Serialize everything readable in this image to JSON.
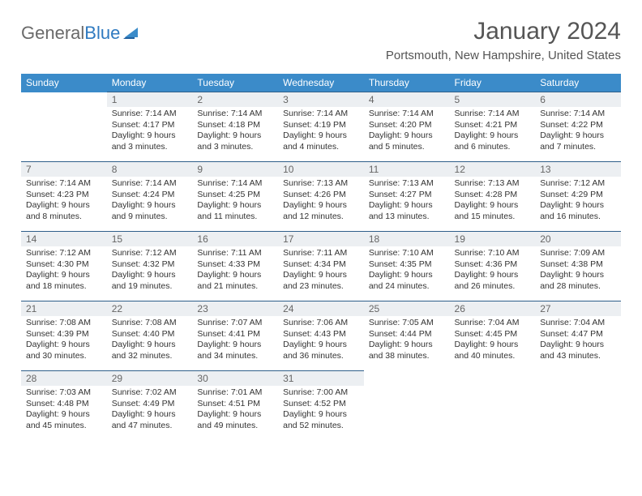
{
  "logo": {
    "text1": "General",
    "text2": "Blue"
  },
  "title": "January 2024",
  "location": "Portsmouth, New Hampshire, United States",
  "colors": {
    "header_bg": "#3b8bc9",
    "header_text": "#ffffff",
    "cell_border": "#2f5f8a",
    "daynum_bg": "#eceff2",
    "daynum_text": "#666666",
    "body_text": "#333333",
    "title_text": "#555555",
    "logo_gray": "#6a6a6a",
    "logo_blue": "#2f7ac0"
  },
  "weekdays": [
    "Sunday",
    "Monday",
    "Tuesday",
    "Wednesday",
    "Thursday",
    "Friday",
    "Saturday"
  ],
  "weeks": [
    [
      null,
      {
        "n": "1",
        "sr": "7:14 AM",
        "ss": "4:17 PM",
        "dl": "9 hours and 3 minutes."
      },
      {
        "n": "2",
        "sr": "7:14 AM",
        "ss": "4:18 PM",
        "dl": "9 hours and 3 minutes."
      },
      {
        "n": "3",
        "sr": "7:14 AM",
        "ss": "4:19 PM",
        "dl": "9 hours and 4 minutes."
      },
      {
        "n": "4",
        "sr": "7:14 AM",
        "ss": "4:20 PM",
        "dl": "9 hours and 5 minutes."
      },
      {
        "n": "5",
        "sr": "7:14 AM",
        "ss": "4:21 PM",
        "dl": "9 hours and 6 minutes."
      },
      {
        "n": "6",
        "sr": "7:14 AM",
        "ss": "4:22 PM",
        "dl": "9 hours and 7 minutes."
      }
    ],
    [
      {
        "n": "7",
        "sr": "7:14 AM",
        "ss": "4:23 PM",
        "dl": "9 hours and 8 minutes."
      },
      {
        "n": "8",
        "sr": "7:14 AM",
        "ss": "4:24 PM",
        "dl": "9 hours and 9 minutes."
      },
      {
        "n": "9",
        "sr": "7:14 AM",
        "ss": "4:25 PM",
        "dl": "9 hours and 11 minutes."
      },
      {
        "n": "10",
        "sr": "7:13 AM",
        "ss": "4:26 PM",
        "dl": "9 hours and 12 minutes."
      },
      {
        "n": "11",
        "sr": "7:13 AM",
        "ss": "4:27 PM",
        "dl": "9 hours and 13 minutes."
      },
      {
        "n": "12",
        "sr": "7:13 AM",
        "ss": "4:28 PM",
        "dl": "9 hours and 15 minutes."
      },
      {
        "n": "13",
        "sr": "7:12 AM",
        "ss": "4:29 PM",
        "dl": "9 hours and 16 minutes."
      }
    ],
    [
      {
        "n": "14",
        "sr": "7:12 AM",
        "ss": "4:30 PM",
        "dl": "9 hours and 18 minutes."
      },
      {
        "n": "15",
        "sr": "7:12 AM",
        "ss": "4:32 PM",
        "dl": "9 hours and 19 minutes."
      },
      {
        "n": "16",
        "sr": "7:11 AM",
        "ss": "4:33 PM",
        "dl": "9 hours and 21 minutes."
      },
      {
        "n": "17",
        "sr": "7:11 AM",
        "ss": "4:34 PM",
        "dl": "9 hours and 23 minutes."
      },
      {
        "n": "18",
        "sr": "7:10 AM",
        "ss": "4:35 PM",
        "dl": "9 hours and 24 minutes."
      },
      {
        "n": "19",
        "sr": "7:10 AM",
        "ss": "4:36 PM",
        "dl": "9 hours and 26 minutes."
      },
      {
        "n": "20",
        "sr": "7:09 AM",
        "ss": "4:38 PM",
        "dl": "9 hours and 28 minutes."
      }
    ],
    [
      {
        "n": "21",
        "sr": "7:08 AM",
        "ss": "4:39 PM",
        "dl": "9 hours and 30 minutes."
      },
      {
        "n": "22",
        "sr": "7:08 AM",
        "ss": "4:40 PM",
        "dl": "9 hours and 32 minutes."
      },
      {
        "n": "23",
        "sr": "7:07 AM",
        "ss": "4:41 PM",
        "dl": "9 hours and 34 minutes."
      },
      {
        "n": "24",
        "sr": "7:06 AM",
        "ss": "4:43 PM",
        "dl": "9 hours and 36 minutes."
      },
      {
        "n": "25",
        "sr": "7:05 AM",
        "ss": "4:44 PM",
        "dl": "9 hours and 38 minutes."
      },
      {
        "n": "26",
        "sr": "7:04 AM",
        "ss": "4:45 PM",
        "dl": "9 hours and 40 minutes."
      },
      {
        "n": "27",
        "sr": "7:04 AM",
        "ss": "4:47 PM",
        "dl": "9 hours and 43 minutes."
      }
    ],
    [
      {
        "n": "28",
        "sr": "7:03 AM",
        "ss": "4:48 PM",
        "dl": "9 hours and 45 minutes."
      },
      {
        "n": "29",
        "sr": "7:02 AM",
        "ss": "4:49 PM",
        "dl": "9 hours and 47 minutes."
      },
      {
        "n": "30",
        "sr": "7:01 AM",
        "ss": "4:51 PM",
        "dl": "9 hours and 49 minutes."
      },
      {
        "n": "31",
        "sr": "7:00 AM",
        "ss": "4:52 PM",
        "dl": "9 hours and 52 minutes."
      },
      null,
      null,
      null
    ]
  ],
  "labels": {
    "sunrise": "Sunrise:",
    "sunset": "Sunset:",
    "daylight": "Daylight:"
  }
}
